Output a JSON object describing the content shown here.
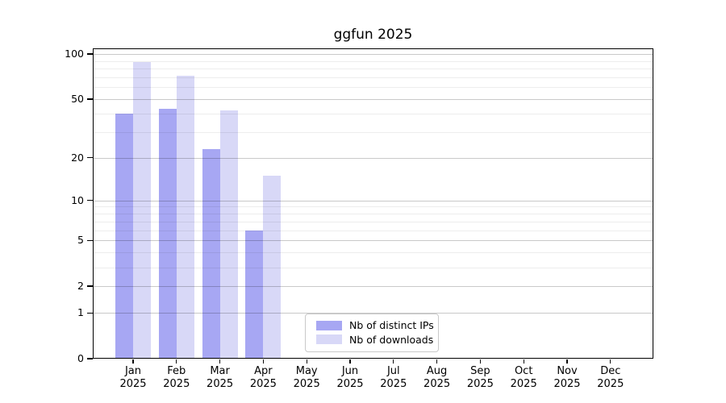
{
  "chart_data": {
    "type": "bar",
    "title": "ggfun 2025",
    "categories": [
      "Jan 2025",
      "Feb 2025",
      "Mar 2025",
      "Apr 2025",
      "May 2025",
      "Jun 2025",
      "Jul 2025",
      "Aug 2025",
      "Sep 2025",
      "Oct 2025",
      "Nov 2025",
      "Dec 2025"
    ],
    "series": [
      {
        "name": "Nb of distinct IPs",
        "color": "#a7a7f3",
        "values": [
          40,
          43,
          23,
          6,
          null,
          null,
          null,
          null,
          null,
          null,
          null,
          null
        ]
      },
      {
        "name": "Nb of downloads",
        "color": "#d8d8f7",
        "values": [
          88,
          72,
          42,
          15,
          null,
          null,
          null,
          null,
          null,
          null,
          null,
          null
        ]
      }
    ],
    "xlabel": "",
    "ylabel": "",
    "y_axis": {
      "scale": "log1p",
      "major_ticks": [
        0,
        1,
        2,
        5,
        10,
        20,
        50,
        100
      ],
      "minor_ticks": [
        3,
        4,
        6,
        7,
        8,
        9,
        30,
        40,
        60,
        70,
        80,
        90
      ],
      "ylim": [
        0,
        109
      ]
    },
    "grid": true,
    "legend_position": "bottom-center-inside",
    "colors": {
      "spine": "#000000",
      "background": "#ffffff"
    }
  }
}
